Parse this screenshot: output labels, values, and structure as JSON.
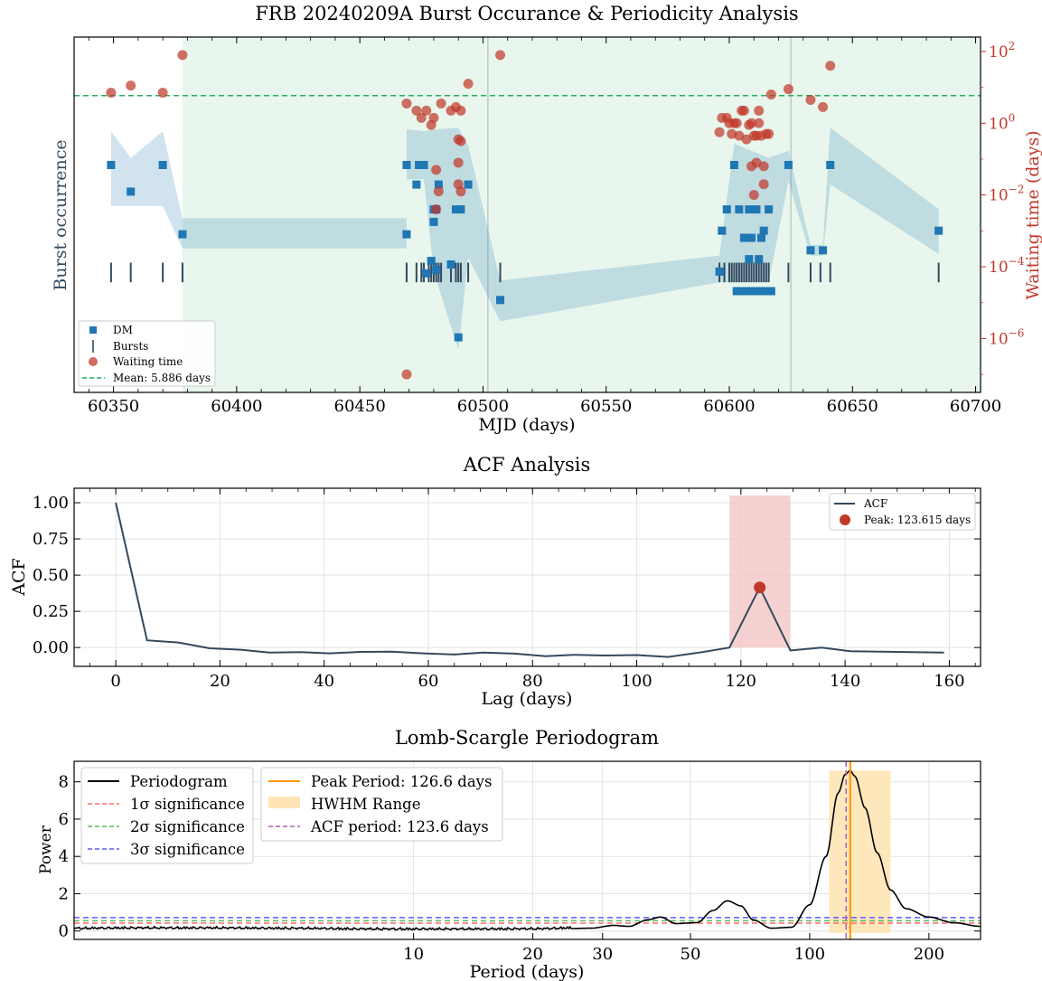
{
  "colors": {
    "dm": "#1f77b4",
    "bursts": "#34495e",
    "waiting": "#c0392b",
    "mean": "#27ae60",
    "band": "#2c7fb8",
    "green_span": "#e8f6ed",
    "acf_line": "#34495e",
    "acf_peak": "#c0392b",
    "acf_span": "#f2c6c6",
    "periodogram": "#000000",
    "peak_line": "#ff9900",
    "hwhm": "#ffe4b5",
    "sig1": "#ff6b6b",
    "sig2": "#5cb85c",
    "sig3": "#5b5bff",
    "acf_period": "#b05fb0"
  },
  "panel1": {
    "title": "FRB 20240209A Burst Occurance & Periodicity Analysis",
    "xlabel": "MJD (days)",
    "ylabel_left": "Burst occurrence",
    "ylabel_right": "Waiting time (days)",
    "xticks": [
      "60350",
      "60400",
      "60450",
      "60500",
      "60550",
      "60600",
      "60650",
      "60700"
    ],
    "yticks_right": [
      {
        "base": "10",
        "exp": "2"
      },
      {
        "base": "10",
        "exp": "0"
      },
      {
        "base": "10",
        "exp": "−2"
      },
      {
        "base": "10",
        "exp": "−4"
      },
      {
        "base": "10",
        "exp": "−6"
      }
    ],
    "legend": {
      "dm": "DM",
      "bursts": "Bursts",
      "waiting": "Waiting time",
      "mean": "Mean: 5.886 days"
    }
  },
  "panel2": {
    "title": "ACF Analysis",
    "xlabel": "Lag (days)",
    "ylabel": "ACF",
    "xticks": [
      "0",
      "20",
      "40",
      "60",
      "80",
      "100",
      "120",
      "140",
      "160"
    ],
    "yticks": [
      "1.00",
      "0.75",
      "0.50",
      "0.25",
      "0.00"
    ],
    "legend": {
      "line": "ACF",
      "peak": "Peak: 123.615 days"
    }
  },
  "panel3": {
    "title": "Lomb-Scargle Periodogram",
    "xlabel": "Period (days)",
    "ylabel": "Power",
    "xticks": [
      "10",
      "20",
      "30",
      "50",
      "100",
      "200"
    ],
    "yticks": [
      "8",
      "6",
      "4",
      "2",
      "0"
    ],
    "legend1": [
      "Periodogram",
      "1σ significance",
      "2σ significance",
      "3σ significance"
    ],
    "legend2": [
      "Peak Period: 126.6 days",
      "HWHM Range",
      "ACF period: 123.6 days"
    ]
  },
  "chart_data": [
    {
      "type": "scatter",
      "title": "FRB 20240209A Burst Occurance & Periodicity Analysis",
      "xlabel": "MJD (days)",
      "ylabel": "Burst occurrence",
      "ylabel_right": "Waiting time (days)",
      "xlim": [
        60334,
        60702
      ],
      "ylim_right_log10": [
        -7.5,
        2.4
      ],
      "green_span_mjd": [
        60378,
        60702
      ],
      "vlines_mjd": [
        60502,
        60625
      ],
      "mean_waiting_days": 5.886,
      "bursts_mjd": [
        60349,
        60357,
        60370,
        60378,
        60469,
        60473,
        60475,
        60476,
        60478,
        60479,
        60480,
        60481,
        60482,
        60483,
        60487,
        60489,
        60490,
        60491,
        60494,
        60507,
        60596,
        60598,
        60600,
        60601,
        60602,
        60603,
        60604,
        60605,
        60606,
        60607,
        60608,
        60609,
        60610,
        60611,
        60612,
        60613,
        60614,
        60615,
        60616,
        60624,
        60633,
        60637,
        60641,
        60685
      ],
      "dm_points": [
        [
          60349,
          0.64
        ],
        [
          60357,
          0.565
        ],
        [
          60370,
          0.64
        ],
        [
          60378,
          0.445
        ],
        [
          60469,
          0.445
        ],
        [
          60469,
          0.64
        ],
        [
          60473,
          0.585
        ],
        [
          60474,
          0.64
        ],
        [
          60476,
          0.64
        ],
        [
          60477,
          0.335
        ],
        [
          60479,
          0.37
        ],
        [
          60480,
          0.48
        ],
        [
          60481,
          0.345
        ],
        [
          60482,
          0.585
        ],
        [
          60480,
          0.515
        ],
        [
          60481,
          0.515
        ],
        [
          60487,
          0.36
        ],
        [
          60489,
          0.515
        ],
        [
          60490,
          0.155
        ],
        [
          60491,
          0.515
        ],
        [
          60494,
          0.585
        ],
        [
          60507,
          0.26
        ],
        [
          60596,
          0.34
        ],
        [
          60597,
          0.455
        ],
        [
          60599,
          0.515
        ],
        [
          60602,
          0.64
        ],
        [
          60603,
          0.285
        ],
        [
          60604,
          0.515
        ],
        [
          60605,
          0.285
        ],
        [
          60606,
          0.435
        ],
        [
          60607,
          0.285
        ],
        [
          60608,
          0.515
        ],
        [
          60608,
          0.375
        ],
        [
          60609,
          0.435
        ],
        [
          60610,
          0.285
        ],
        [
          60611,
          0.515
        ],
        [
          60612,
          0.285
        ],
        [
          60612,
          0.375
        ],
        [
          60613,
          0.435
        ],
        [
          60614,
          0.455
        ],
        [
          60615,
          0.285
        ],
        [
          60616,
          0.515
        ],
        [
          60617,
          0.285
        ],
        [
          60624,
          0.64
        ],
        [
          60633,
          0.4
        ],
        [
          60638,
          0.4
        ],
        [
          60641,
          0.64
        ],
        [
          60685,
          0.455
        ]
      ],
      "waiting_time_points_log10": [
        [
          60349,
          0.85
        ],
        [
          60357,
          1.05
        ],
        [
          60370,
          0.85
        ],
        [
          60378,
          1.9
        ],
        [
          60469,
          0.55
        ],
        [
          60469,
          -7.0
        ],
        [
          60473,
          0.35
        ],
        [
          60475,
          0.15
        ],
        [
          60477,
          0.35
        ],
        [
          60479,
          -0.05
        ],
        [
          60480,
          0.15
        ],
        [
          60481,
          -1.3
        ],
        [
          60481,
          -2.4
        ],
        [
          60482,
          -1.9
        ],
        [
          60483,
          0.55
        ],
        [
          60487,
          0.35
        ],
        [
          60489,
          0.45
        ],
        [
          60490,
          -0.45
        ],
        [
          60490,
          -1.1
        ],
        [
          60490,
          -1.7
        ],
        [
          60491,
          -0.5
        ],
        [
          60491,
          -1.9
        ],
        [
          60491,
          0.35
        ],
        [
          60494,
          1.1
        ],
        [
          60507,
          1.9
        ],
        [
          60596,
          -0.25
        ],
        [
          60597,
          0.15
        ],
        [
          60599,
          0.15
        ],
        [
          60600,
          0.0
        ],
        [
          60601,
          -0.3
        ],
        [
          60602,
          0.0
        ],
        [
          60603,
          0.0
        ],
        [
          60604,
          -0.35
        ],
        [
          60605,
          0.35
        ],
        [
          60606,
          0.35
        ],
        [
          60607,
          -0.45
        ],
        [
          60608,
          -0.05
        ],
        [
          60609,
          0.0
        ],
        [
          60609,
          -1.2
        ],
        [
          60610,
          -0.35
        ],
        [
          60610,
          -2.0
        ],
        [
          60611,
          -1.1
        ],
        [
          60611,
          -0.35
        ],
        [
          60612,
          0.0
        ],
        [
          60612,
          0.35
        ],
        [
          60613,
          -0.35
        ],
        [
          60614,
          -1.2
        ],
        [
          60614,
          -1.7
        ],
        [
          60615,
          -0.3
        ],
        [
          60616,
          -0.3
        ],
        [
          60617,
          0.8
        ],
        [
          60624,
          0.95
        ],
        [
          60633,
          0.65
        ],
        [
          60638,
          0.45
        ],
        [
          60641,
          1.6
        ]
      ],
      "dm_band_upper": [
        [
          60349,
          0.735
        ],
        [
          60357,
          0.66
        ],
        [
          60370,
          0.735
        ],
        [
          60378,
          0.49
        ],
        [
          60469,
          0.49
        ],
        [
          60469,
          0.74
        ],
        [
          60476,
          0.735
        ],
        [
          60480,
          0.74
        ],
        [
          60490,
          0.745
        ],
        [
          60494,
          0.695
        ],
        [
          60507,
          0.315
        ],
        [
          60596,
          0.385
        ],
        [
          60602,
          0.7
        ],
        [
          60616,
          0.66
        ],
        [
          60624,
          0.68
        ],
        [
          60633,
          0.415
        ],
        [
          60638,
          0.415
        ],
        [
          60641,
          0.745
        ],
        [
          60685,
          0.515
        ]
      ],
      "dm_band_lower": [
        [
          60349,
          0.525
        ],
        [
          60357,
          0.525
        ],
        [
          60370,
          0.525
        ],
        [
          60378,
          0.405
        ],
        [
          60469,
          0.405
        ],
        [
          60469,
          0.6
        ],
        [
          60476,
          0.6
        ],
        [
          60480,
          0.34
        ],
        [
          60490,
          0.12
        ],
        [
          60494,
          0.38
        ],
        [
          60507,
          0.2
        ],
        [
          60596,
          0.31
        ],
        [
          60602,
          0.31
        ],
        [
          60616,
          0.31
        ],
        [
          60624,
          0.595
        ],
        [
          60633,
          0.385
        ],
        [
          60638,
          0.385
        ],
        [
          60641,
          0.585
        ],
        [
          60685,
          0.39
        ]
      ],
      "legend": [
        "DM",
        "Bursts",
        "Waiting time",
        "Mean: 5.886 days"
      ],
      "legend_position": "lower-left"
    },
    {
      "type": "line",
      "title": "ACF Analysis",
      "xlabel": "Lag (days)",
      "ylabel": "ACF",
      "xlim": [
        -8,
        166
      ],
      "ylim": [
        -0.13,
        1.1
      ],
      "x": [
        0,
        6,
        12,
        18,
        24,
        29.5,
        35.5,
        41,
        47,
        53,
        59,
        65,
        70.5,
        76.5,
        82.5,
        88,
        94,
        100,
        106,
        112,
        117.8,
        123.6,
        129.5,
        135.5,
        141,
        159
      ],
      "y": [
        1.0,
        0.05,
        0.035,
        -0.005,
        -0.015,
        -0.035,
        -0.032,
        -0.04,
        -0.03,
        -0.028,
        -0.04,
        -0.048,
        -0.035,
        -0.042,
        -0.06,
        -0.05,
        -0.055,
        -0.052,
        -0.065,
        -0.035,
        0.0,
        0.415,
        -0.02,
        0.0,
        -0.025,
        -0.035
      ],
      "peak": {
        "x": 123.615,
        "y": 0.415
      },
      "span": [
        117.8,
        129.5
      ],
      "legend": [
        "ACF",
        "Peak: 123.615 days"
      ],
      "legend_position": "top-right"
    },
    {
      "type": "line",
      "title": "Lomb-Scargle Periodogram",
      "xlabel": "Period (days)",
      "ylabel": "Power",
      "xscale": "log",
      "xlim": [
        1.39,
        270
      ],
      "ylim": [
        -0.45,
        9.1
      ],
      "peak_period": 126.6,
      "acf_period": 123.6,
      "hwhm_range": [
        112,
        160
      ],
      "significance_levels": {
        "1sigma": 0.42,
        "2sigma": 0.55,
        "3sigma": 0.72
      },
      "x": [
        1.4,
        2,
        3,
        5,
        8,
        12,
        20,
        28,
        32,
        35,
        39,
        42,
        46,
        52,
        57,
        62,
        67,
        72,
        80,
        90,
        100,
        110,
        118,
        123,
        126.6,
        130,
        138,
        148,
        160,
        175,
        200,
        230,
        270
      ],
      "y": [
        0.1,
        0.12,
        0.12,
        0.1,
        0.06,
        0.06,
        0.07,
        0.15,
        0.3,
        0.25,
        0.6,
        0.75,
        0.4,
        0.45,
        1.1,
        1.62,
        1.35,
        0.6,
        0.15,
        0.2,
        1.4,
        4.0,
        7.4,
        8.4,
        8.6,
        8.3,
        6.6,
        4.2,
        2.2,
        1.2,
        0.75,
        0.45,
        0.25
      ],
      "legend": [
        "Periodogram",
        "1σ significance",
        "2σ significance",
        "3σ significance",
        "Peak Period: 126.6 days",
        "HWHM Range",
        "ACF period: 123.6 days"
      ],
      "legend_position": "top-left"
    }
  ]
}
